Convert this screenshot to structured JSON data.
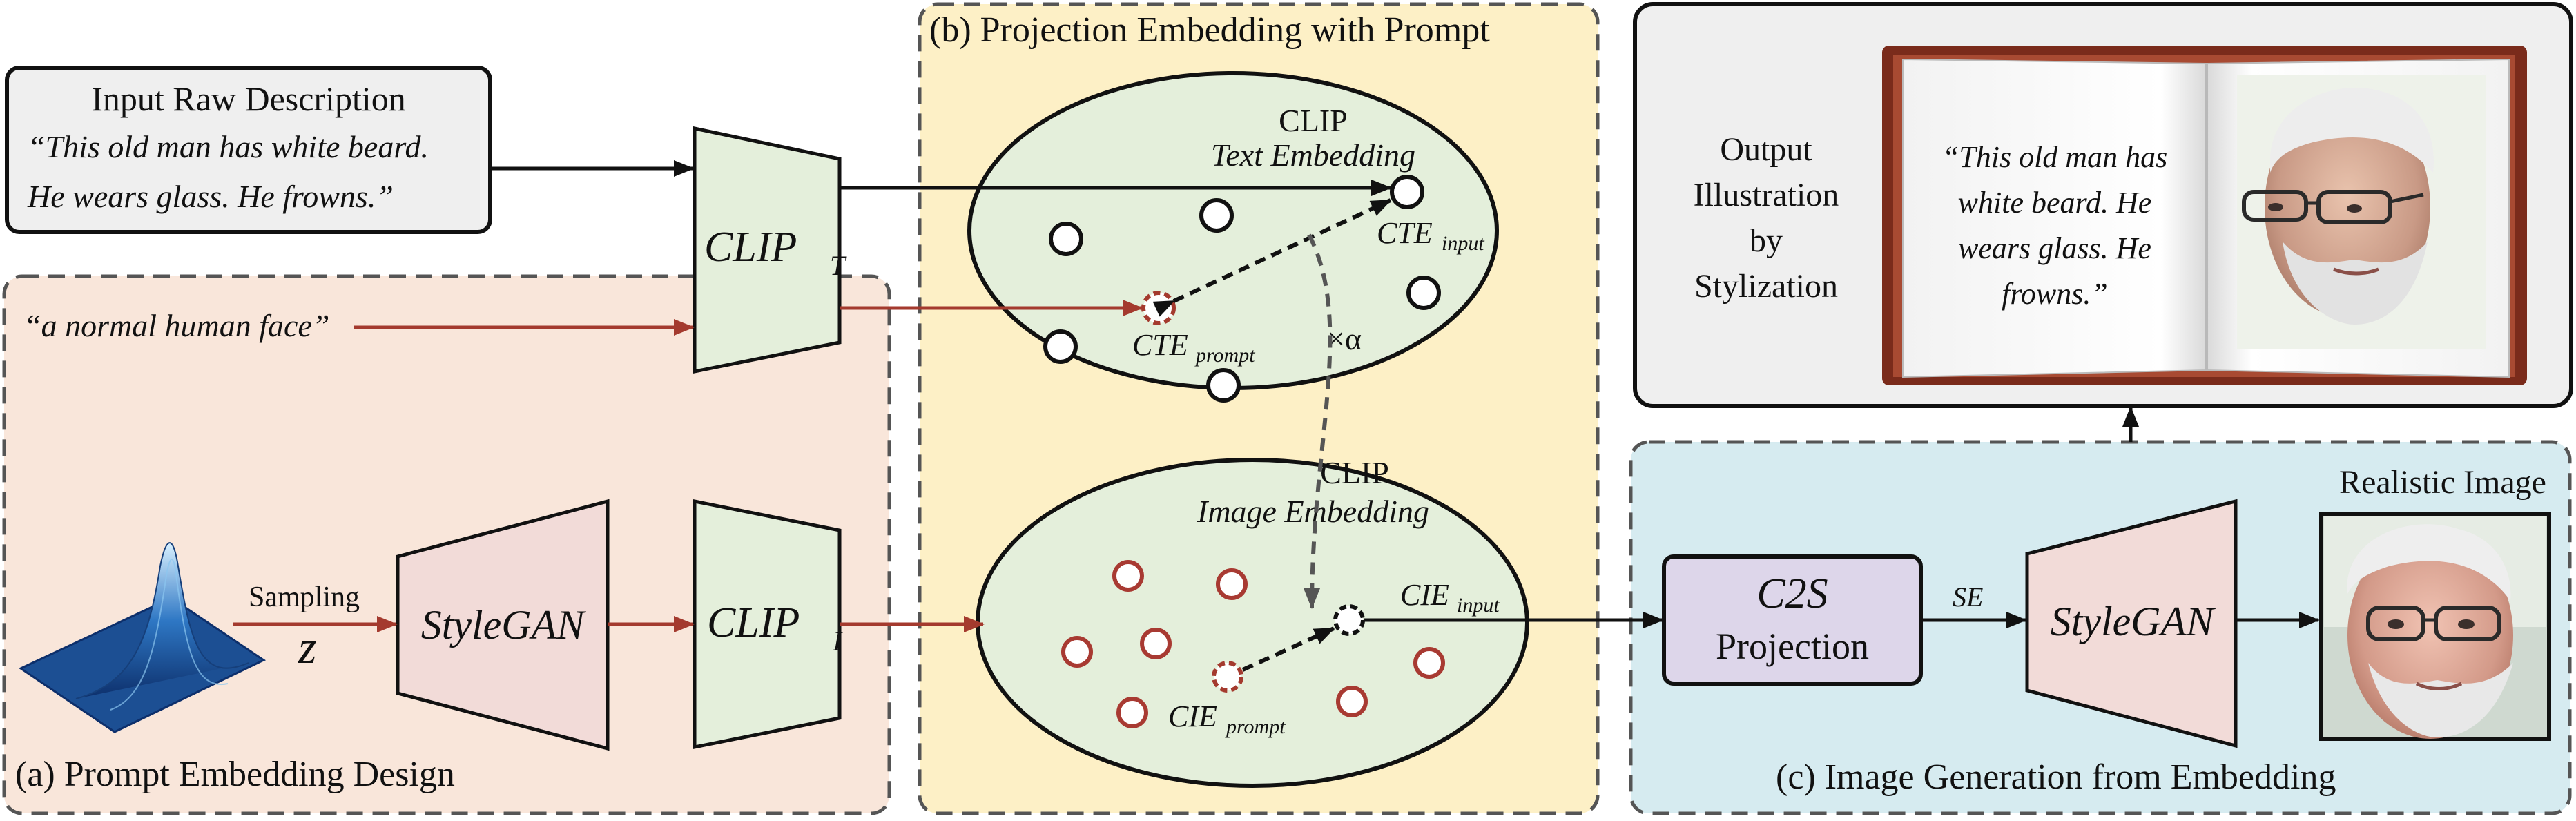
{
  "panels": {
    "a_title": "(a) Prompt Embedding Design",
    "b_title": "(b) Projection Embedding with Prompt",
    "c_title": "(c) Image Generation from Embedding"
  },
  "input_box": {
    "title": "Input Raw Description",
    "line1": "“This old man has white beard.",
    "line2": "He wears glass. He frowns.”"
  },
  "prompt_text": "“a normal human face”",
  "sampling": {
    "label": "Sampling",
    "z": "z"
  },
  "blocks": {
    "clip_t_main": "CLIP",
    "clip_t_sub": "T",
    "clip_i_main": "CLIP",
    "clip_i_sub": "I",
    "stylegan_a": "StyleGAN",
    "stylegan_c": "StyleGAN",
    "c2s_main": "C2S",
    "c2s_sub": "Projection"
  },
  "text_embedding": {
    "title": "CLIP",
    "subtitle": "Text Embedding",
    "cte_input_main": "CTE",
    "cte_input_sub": "input",
    "cte_prompt_main": "CTE",
    "cte_prompt_sub": "prompt",
    "alpha": "×α"
  },
  "image_embedding": {
    "title": "CLIP",
    "subtitle": "Image Embedding",
    "cie_input_main": "CIE",
    "cie_input_sub": "input",
    "cie_prompt_main": "CIE",
    "cie_prompt_sub": "prompt"
  },
  "se_label": "SE",
  "realistic_label": "Realistic Image",
  "output": {
    "label_lines": [
      "Output",
      "Illustration",
      "by",
      "Stylization"
    ],
    "quote_lines": [
      "“This old man has",
      "white beard. He",
      "wears glass. He",
      "frowns.”"
    ]
  },
  "colors": {
    "panel_a_fill": "#f9e6da",
    "panel_b_fill": "#fdf0c6",
    "panel_c_fill": "#d6ebf0",
    "output_fill": "#efefef",
    "green_block": "#e4efdb",
    "pink_block": "#f2dbd8",
    "purple_block": "#ddd6ea",
    "red_arrow": "#a43a2e",
    "red_circle": "#a83a32"
  }
}
